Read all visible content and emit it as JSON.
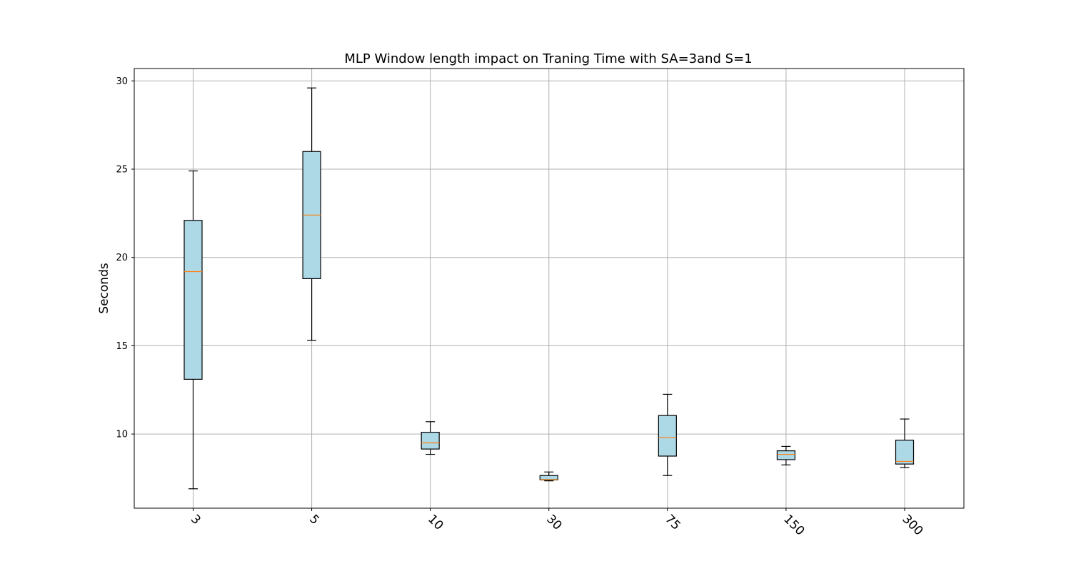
{
  "chart_data": {
    "type": "box",
    "title": "MLP Window length impact on Traning Time with SA=3and S=1",
    "xlabel": "",
    "ylabel": "Seconds",
    "ylim": [
      5.8,
      30.7
    ],
    "yticks": [
      10,
      15,
      20,
      25,
      30
    ],
    "categories": [
      "3",
      "5",
      "10",
      "30",
      "75",
      "150",
      "300"
    ],
    "boxes": [
      {
        "whislo": 6.9,
        "q1": 13.1,
        "med": 19.2,
        "q3": 22.1,
        "whishi": 24.9
      },
      {
        "whislo": 15.3,
        "q1": 18.8,
        "med": 22.4,
        "q3": 26.0,
        "whishi": 29.6
      },
      {
        "whislo": 8.85,
        "q1": 9.15,
        "med": 9.5,
        "q3": 10.1,
        "whishi": 10.7
      },
      {
        "whislo": 7.35,
        "q1": 7.4,
        "med": 7.42,
        "q3": 7.65,
        "whishi": 7.85
      },
      {
        "whislo": 7.65,
        "q1": 8.75,
        "med": 9.8,
        "q3": 11.05,
        "whishi": 12.25
      },
      {
        "whislo": 8.25,
        "q1": 8.55,
        "med": 8.85,
        "q3": 9.05,
        "whishi": 9.3
      },
      {
        "whislo": 8.1,
        "q1": 8.3,
        "med": 8.45,
        "q3": 9.65,
        "whishi": 10.85
      }
    ],
    "grid": true,
    "colors": {
      "box_fill": "#add8e6",
      "median": "#ff7f0e",
      "edge": "#000000",
      "grid": "#b0b0b0"
    }
  }
}
